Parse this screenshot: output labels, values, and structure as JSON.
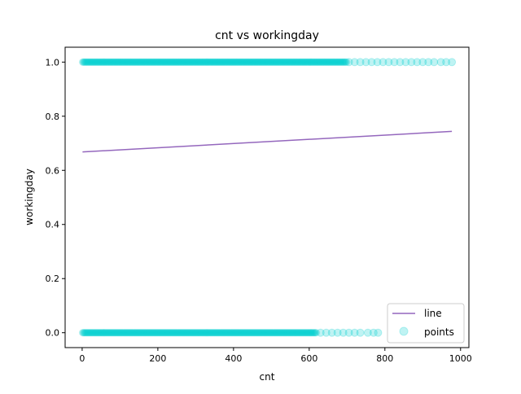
{
  "chart_data": {
    "type": "scatter",
    "title": "cnt vs workingday",
    "xlabel": "cnt",
    "ylabel": "workingday",
    "xlim": [
      -45,
      1022
    ],
    "ylim": [
      -0.055,
      1.055
    ],
    "xticks": [
      0,
      200,
      400,
      600,
      800,
      1000
    ],
    "xtick_labels": [
      "0",
      "200",
      "400",
      "600",
      "800",
      "1000"
    ],
    "yticks": [
      0.0,
      0.2,
      0.4,
      0.6,
      0.8,
      1.0
    ],
    "ytick_labels": [
      "0.0",
      "0.2",
      "0.4",
      "0.6",
      "0.8",
      "1.0"
    ],
    "grid": false,
    "legend": {
      "position": "lower right",
      "entries": [
        "line",
        "points"
      ]
    },
    "series": [
      {
        "name": "line",
        "kind": "line",
        "color": "#9467bd",
        "x": [
          1,
          977
        ],
        "y": [
          0.668,
          0.744
        ]
      },
      {
        "name": "points",
        "kind": "scatter",
        "color": "#00ced1",
        "alpha": 0.25,
        "groups": [
          {
            "y": 1.0,
            "x_dense_range": [
              1,
              700
            ],
            "x_sparse": [
              705,
              720,
              735,
              750,
              765,
              780,
              795,
              810,
              825,
              840,
              855,
              870,
              885,
              900,
              915,
              930,
              948,
              962,
              977
            ]
          },
          {
            "y": 0.0,
            "x_dense_range": [
              1,
              620
            ],
            "x_sparse": [
              630,
              645,
              660,
              675,
              690,
              705,
              720,
              735,
              755,
              770,
              782
            ]
          }
        ]
      }
    ]
  }
}
